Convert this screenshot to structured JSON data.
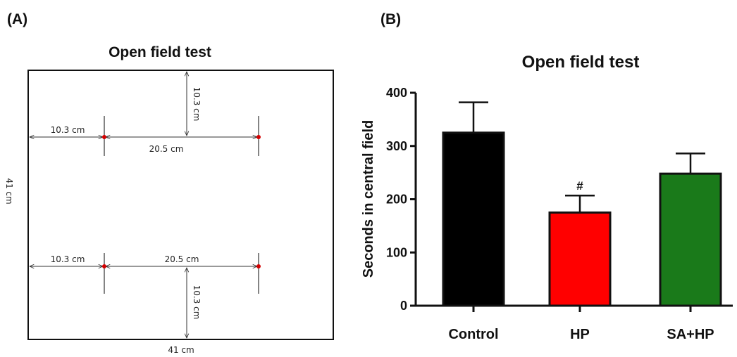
{
  "panel_a": {
    "label": "(A)",
    "title": "Open field test",
    "dims": {
      "upper_left": "10.3 cm",
      "upper_middle": "20.5 cm",
      "top_vertical": "10.3 cm",
      "lower_left": "10.3 cm",
      "lower_middle": "20.5 cm",
      "bottom_vertical": "10.3 cm",
      "side": "41 cm",
      "bottom": "41 cm"
    },
    "marker_color": "#d40000"
  },
  "panel_b": {
    "label": "(B)"
  },
  "chart_data": {
    "type": "bar",
    "title": "Open field test",
    "xlabel": "",
    "ylabel": "Seconds in central field",
    "ylim": [
      0,
      400
    ],
    "yticks": [
      "0",
      "100",
      "200",
      "300",
      "400"
    ],
    "categories": [
      "Control",
      "HP",
      "SA+HP"
    ],
    "values": [
      325,
      175,
      248
    ],
    "errors": [
      57,
      32,
      38
    ],
    "colors": [
      "#000000",
      "#ff0000",
      "#1a7a1a"
    ],
    "annotations": [
      "",
      "#",
      ""
    ]
  }
}
